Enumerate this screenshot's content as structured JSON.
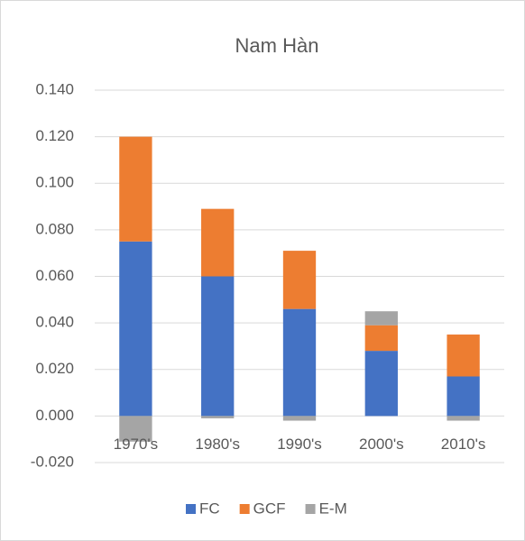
{
  "chart_data": {
    "type": "stacked_bar",
    "title": "Nam Hàn",
    "categories": [
      "1970's",
      "1980's",
      "1990's",
      "2000's",
      "2010's"
    ],
    "series": [
      {
        "name": "FC",
        "color": "#4472c4",
        "values": [
          0.075,
          0.06,
          0.046,
          0.028,
          0.017
        ]
      },
      {
        "name": "GCF",
        "color": "#ed7d31",
        "values": [
          0.045,
          0.029,
          0.025,
          0.011,
          0.018
        ]
      },
      {
        "name": "E-M",
        "color": "#a5a5a5",
        "values": [
          -0.011,
          -0.001,
          -0.002,
          0.006,
          -0.002
        ]
      }
    ],
    "ylim": [
      -0.02,
      0.14
    ],
    "yticks": [
      {
        "value": -0.02,
        "label": "-0.020"
      },
      {
        "value": 0,
        "label": "0.000"
      },
      {
        "value": 0.02,
        "label": "0.020"
      },
      {
        "value": 0.04,
        "label": "0.040"
      },
      {
        "value": 0.06,
        "label": "0.060"
      },
      {
        "value": 0.08,
        "label": "0.080"
      },
      {
        "value": 0.1,
        "label": "0.100"
      },
      {
        "value": 0.12,
        "label": "0.120"
      },
      {
        "value": 0.14,
        "label": "0.140"
      }
    ],
    "grid": true,
    "legend": "bottom"
  }
}
